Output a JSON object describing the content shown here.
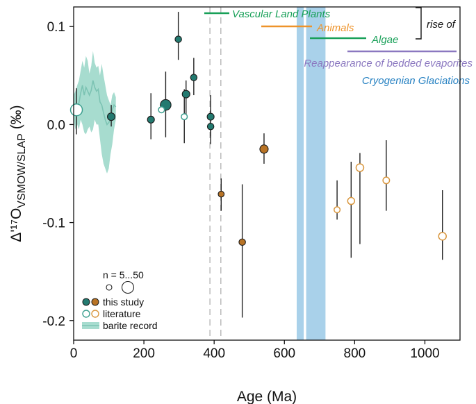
{
  "chart_data": {
    "type": "scatter",
    "title": "",
    "xlabel": "Age (Ma)",
    "ylabel_main": "Δ'¹⁷O",
    "ylabel_sub": "VSMOW/SLAP",
    "ylabel_unit": " (‰)",
    "xlim": [
      0,
      1100
    ],
    "ylim": [
      -0.22,
      0.12
    ],
    "x_ticks": [
      0,
      200,
      400,
      600,
      800,
      1000
    ],
    "x_tick_labels": [
      "0",
      "200",
      "400",
      "600",
      "800",
      "1000"
    ],
    "y_ticks": [
      0.1,
      0.0,
      -0.1,
      -0.2
    ],
    "y_tick_labels": [
      "0.1",
      "0.0",
      "-0.1",
      "-0.2"
    ],
    "colors": {
      "study_green": "#237a70",
      "study_orange": "#b87325",
      "lit_green": "#3c9f8f",
      "lit_orange": "#d9973f",
      "barite": "#a7dccf",
      "barite_line": "#7cc3b3",
      "glaciation": "#a9d1ea",
      "err": "#222222",
      "dashed": "#bbbbbb",
      "plants": "#18a058",
      "animals": "#ee932a",
      "algae": "#18a058",
      "evaporites": "#8b78c0",
      "glaciations": "#2681c2"
    },
    "dashed_lines_x": [
      388,
      419
    ],
    "glaciation_bands": [
      [
        635,
        655
      ],
      [
        662,
        717
      ]
    ],
    "series": [
      {
        "name": "this study (green)",
        "style": "filled",
        "color_key": "study_green",
        "points": [
          {
            "x": 8,
            "y": 0.013,
            "lo": -0.01,
            "hi": 0.037,
            "n": 10
          },
          {
            "x": 107,
            "y": 0.008,
            "lo": -0.002,
            "hi": 0.02,
            "n": 20
          },
          {
            "x": 220,
            "y": 0.005,
            "lo": -0.015,
            "hi": 0.032,
            "n": 15
          },
          {
            "x": 262,
            "y": 0.02,
            "lo": -0.013,
            "hi": 0.054,
            "n": 42
          },
          {
            "x": 298,
            "y": 0.087,
            "lo": 0.066,
            "hi": 0.115,
            "n": 12
          },
          {
            "x": 320,
            "y": 0.031,
            "lo": 0.01,
            "hi": 0.045,
            "n": 20
          },
          {
            "x": 342,
            "y": 0.048,
            "lo": 0.03,
            "hi": 0.068,
            "n": 12
          },
          {
            "x": 390,
            "y": 0.008,
            "lo": -0.012,
            "hi": 0.03,
            "n": 15
          },
          {
            "x": 390,
            "y": -0.002,
            "lo": -0.02,
            "hi": 0.015,
            "n": 12
          }
        ]
      },
      {
        "name": "this study (orange)",
        "style": "filled",
        "color_key": "study_orange",
        "points": [
          {
            "x": 420,
            "y": -0.071,
            "lo": -0.088,
            "hi": -0.055,
            "n": 8
          },
          {
            "x": 480,
            "y": -0.12,
            "lo": -0.197,
            "hi": -0.061,
            "n": 12
          },
          {
            "x": 542,
            "y": -0.025,
            "lo": -0.04,
            "hi": -0.009,
            "n": 25
          }
        ]
      },
      {
        "name": "literature (green)",
        "style": "open",
        "color_key": "lit_green",
        "points": [
          {
            "x": 8,
            "y": 0.015,
            "lo": 0.015,
            "hi": 0.015,
            "n": 50
          },
          {
            "x": 250,
            "y": 0.015,
            "lo": 0.015,
            "hi": 0.015,
            "n": 8
          },
          {
            "x": 315,
            "y": 0.008,
            "lo": -0.019,
            "hi": 0.036,
            "n": 8
          }
        ]
      },
      {
        "name": "literature (orange)",
        "style": "open",
        "color_key": "lit_orange",
        "points": [
          {
            "x": 750,
            "y": -0.087,
            "lo": -0.097,
            "hi": -0.057,
            "n": 8
          },
          {
            "x": 790,
            "y": -0.078,
            "lo": -0.136,
            "hi": -0.038,
            "n": 15
          },
          {
            "x": 815,
            "y": -0.044,
            "lo": -0.122,
            "hi": -0.029,
            "n": 20
          },
          {
            "x": 890,
            "y": -0.057,
            "lo": -0.088,
            "hi": -0.016,
            "n": 12
          },
          {
            "x": 1050,
            "y": -0.114,
            "lo": -0.138,
            "hi": -0.067,
            "n": 20
          }
        ]
      }
    ],
    "barite_record": {
      "name": "barite record",
      "x": [
        0,
        5,
        10,
        15,
        20,
        25,
        30,
        35,
        40,
        45,
        50,
        55,
        60,
        65,
        70,
        75,
        80,
        85,
        90,
        95,
        100,
        105,
        110,
        115,
        120
      ],
      "upper": [
        0.03,
        0.034,
        0.04,
        0.045,
        0.055,
        0.065,
        0.058,
        0.07,
        0.065,
        0.052,
        0.06,
        0.075,
        0.063,
        0.058,
        0.06,
        0.05,
        0.062,
        0.05,
        0.04,
        0.03,
        0.025,
        0.02,
        0.03,
        0.033,
        0.028
      ],
      "lower": [
        0.005,
        -0.005,
        0.0,
        -0.005,
        0.005,
        0.0,
        -0.008,
        -0.01,
        -0.005,
        -0.002,
        -0.008,
        -0.005,
        0.005,
        0.0,
        0.0,
        -0.015,
        -0.03,
        -0.04,
        -0.045,
        -0.05,
        -0.045,
        -0.03,
        -0.02,
        -0.005,
        0.005
      ],
      "mean": [
        0.015,
        0.013,
        0.018,
        0.022,
        0.032,
        0.04,
        0.03,
        0.038,
        0.034,
        0.03,
        0.035,
        0.045,
        0.038,
        0.034,
        0.036,
        0.023,
        0.02,
        0.012,
        0.005,
        0.0,
        0.002,
        0.005,
        0.015,
        0.02,
        0.018
      ]
    },
    "annotations": [
      {
        "text": "Vascular Land Plants",
        "color_key": "plants",
        "x_start": 365,
        "x_end": 430,
        "y": 0.11
      },
      {
        "text": "Animals",
        "color_key": "animals",
        "x_start": 510,
        "x_end": 645,
        "y": 0.096
      },
      {
        "text": "Algae",
        "color_key": "algae",
        "x_start": 645,
        "x_end": 800,
        "y": 0.084
      },
      {
        "text": "Reappearance of bedded evaporites",
        "color_key": "evaporites",
        "x_start": 750,
        "x_end": 1045,
        "y": 0.07
      },
      {
        "text": "Cryogenian Glaciations",
        "color_key": "glaciations",
        "y": 0.054
      }
    ],
    "bracket_label": "rise of",
    "legend": {
      "placement": "bottom-left",
      "n_label": "n = 5...50",
      "items": [
        {
          "label": "this study",
          "kind": "filled-pair"
        },
        {
          "label": "literature",
          "kind": "open-pair"
        },
        {
          "label": "barite record",
          "kind": "band"
        }
      ]
    }
  }
}
